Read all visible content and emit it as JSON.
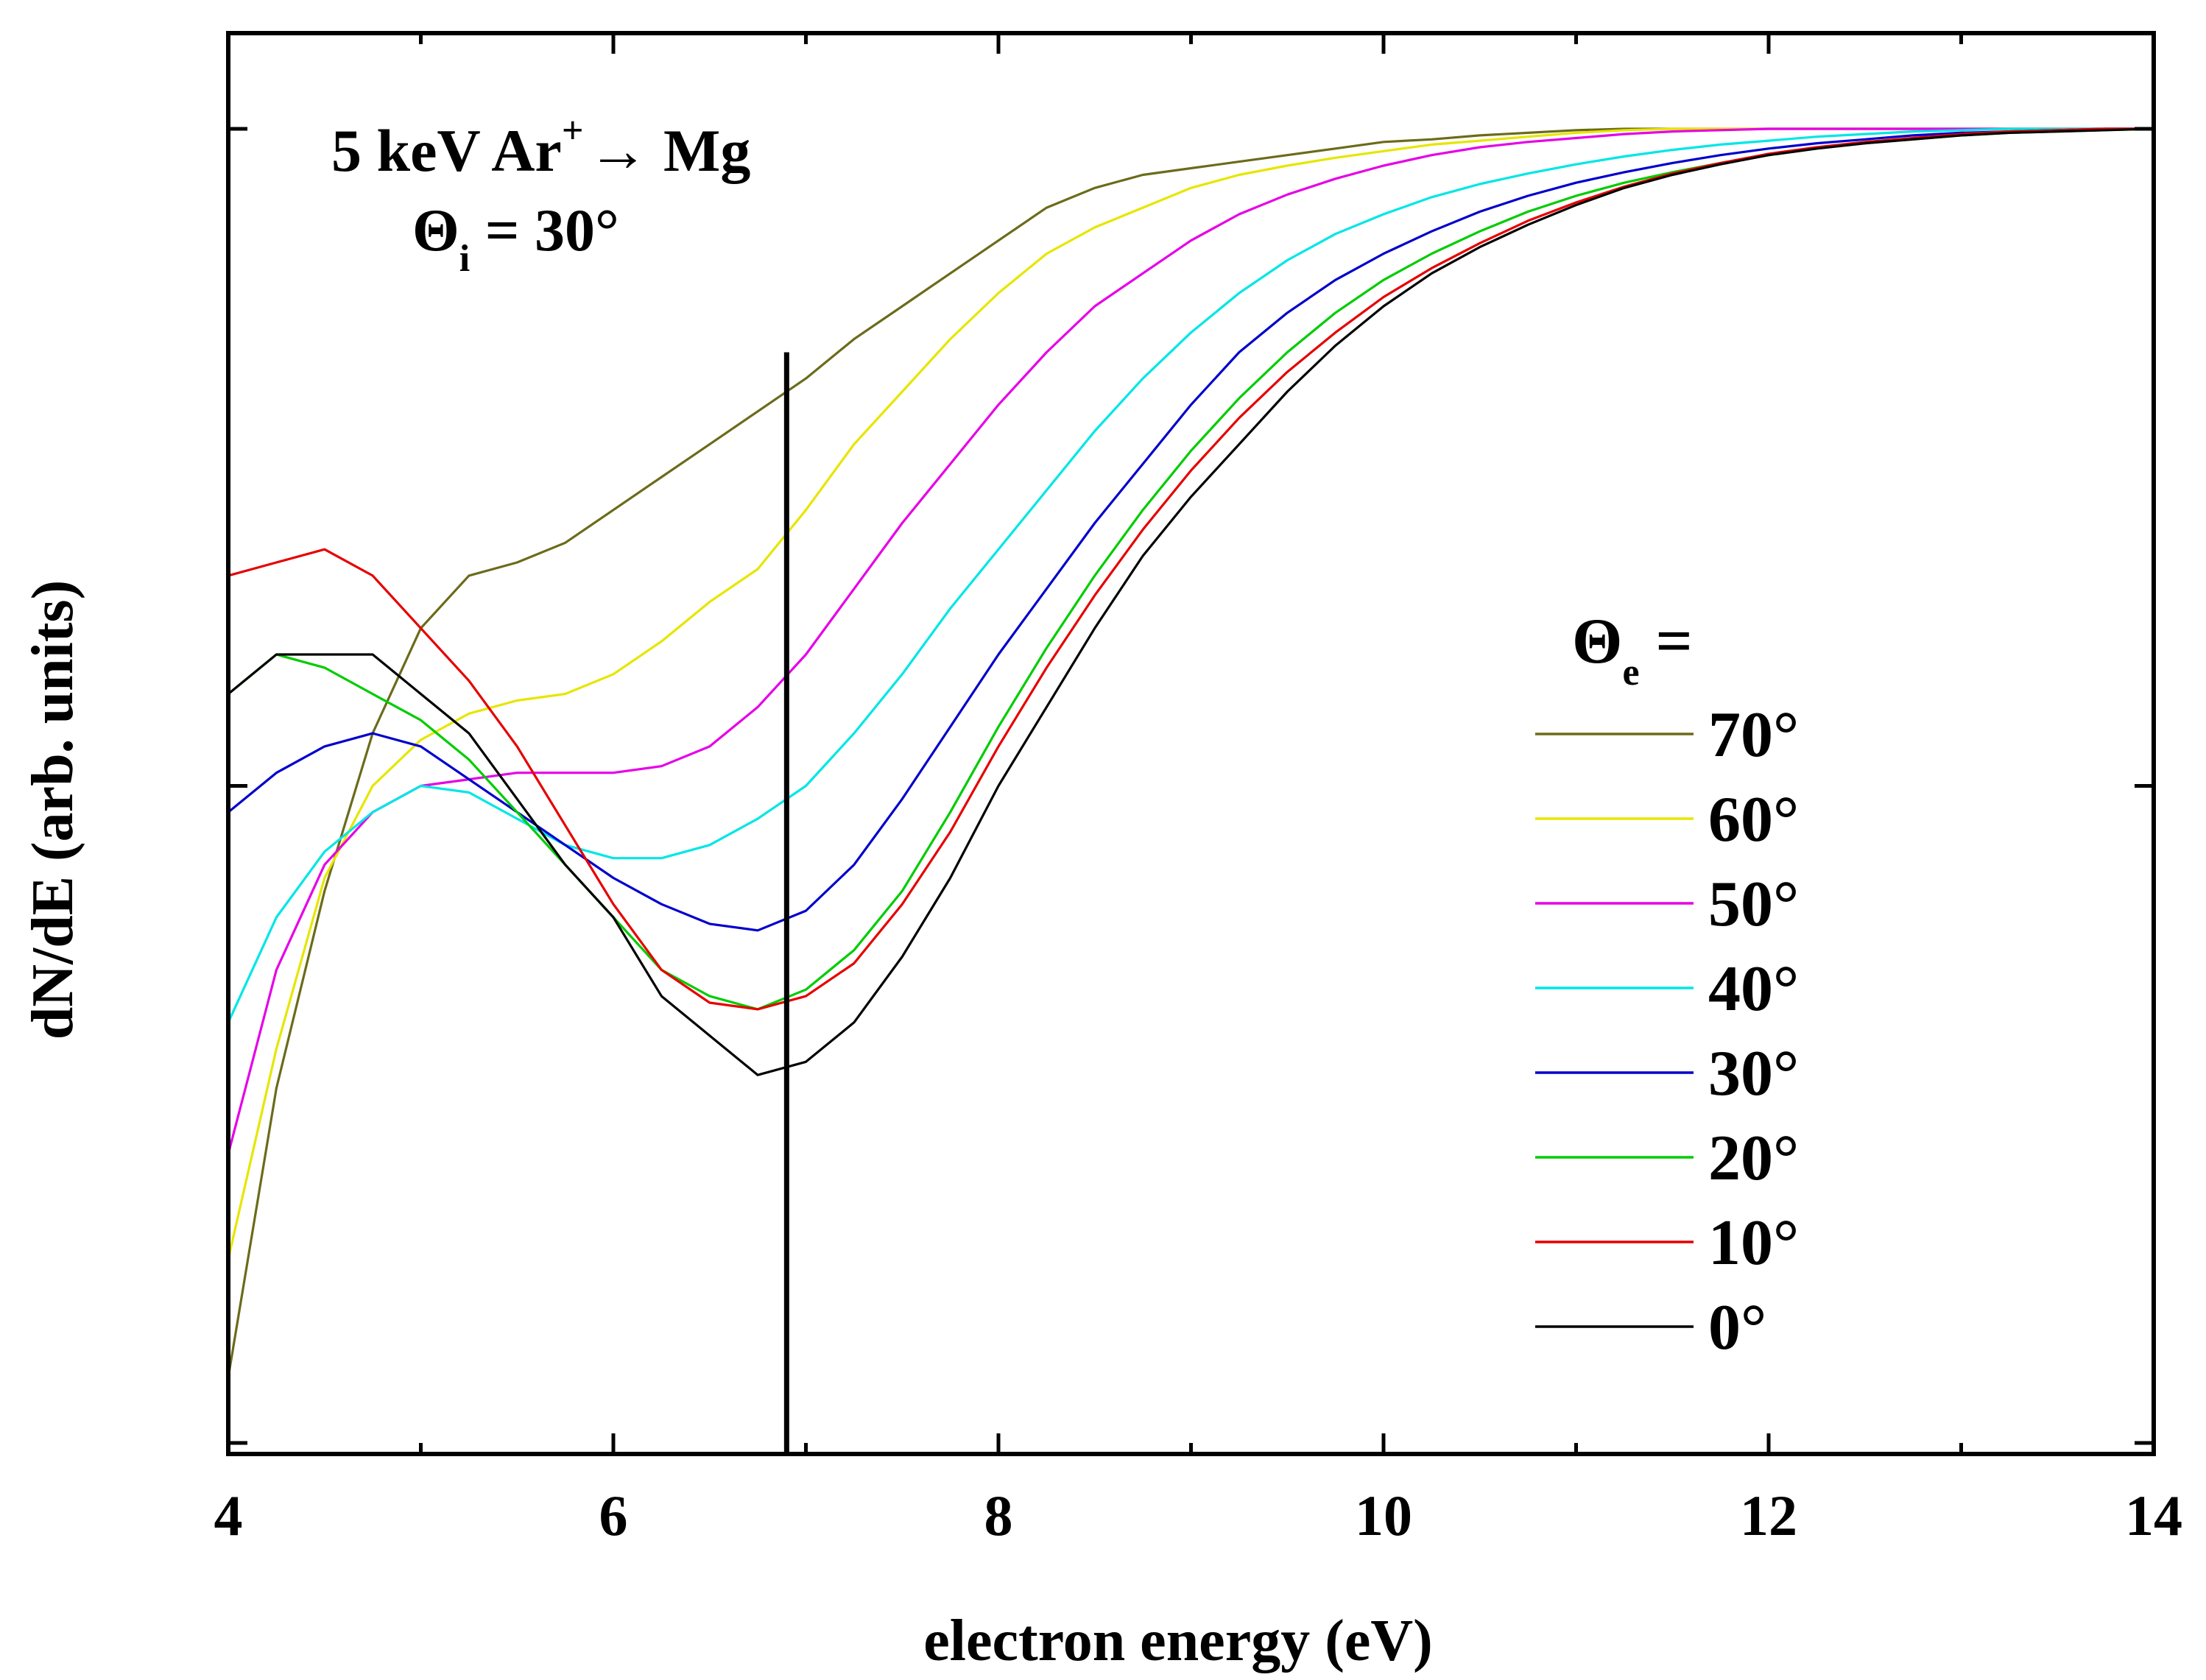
{
  "chart_data": {
    "type": "line",
    "xlabel": "electron energy (eV)",
    "ylabel": "dN/dE (arb. units)",
    "xlim": [
      4,
      14
    ],
    "ylim": [
      0,
      1
    ],
    "x_ticks": [
      "4",
      "6",
      "8",
      "10",
      "12",
      "14"
    ],
    "x_minor_ticks": [
      5,
      7,
      9,
      11,
      13
    ],
    "y_tick_values": [
      0,
      0.5,
      1
    ],
    "grid": false,
    "legend_position": "right",
    "legend_title": "Θe =",
    "legend_title_main": "Θ",
    "legend_title_sub": "e",
    "legend_title_rest": " =",
    "annotation": {
      "line1_pre": "5 keV Ar",
      "line1_sup": "+",
      "line1_post": "→ Mg",
      "line2_main": "Θ",
      "line2_sub": "i",
      "line2_rest": " = 30°"
    },
    "vertical_marker_x": 6.9,
    "vertical_marker_top": 0.83,
    "x": [
      4.0,
      4.25,
      4.5,
      4.75,
      5.0,
      5.25,
      5.5,
      5.75,
      6.0,
      6.25,
      6.5,
      6.75,
      7.0,
      7.25,
      7.5,
      7.75,
      8.0,
      8.25,
      8.5,
      8.75,
      9.0,
      9.25,
      9.5,
      9.75,
      10.0,
      10.25,
      10.5,
      10.75,
      11.0,
      11.25,
      11.5,
      11.75,
      12.0,
      12.25,
      12.5,
      12.75,
      13.0,
      13.25,
      13.5,
      13.75,
      14.0
    ],
    "series": [
      {
        "name": "70°",
        "color": "#6b6b1a",
        "values": [
          0.05,
          0.27,
          0.42,
          0.54,
          0.62,
          0.66,
          0.67,
          0.685,
          0.71,
          0.735,
          0.76,
          0.785,
          0.81,
          0.84,
          0.865,
          0.89,
          0.915,
          0.94,
          0.955,
          0.965,
          0.97,
          0.975,
          0.98,
          0.985,
          0.99,
          0.992,
          0.995,
          0.997,
          0.999,
          1.0,
          1.0,
          1.0,
          1.0,
          1.0,
          1.0,
          1.0,
          1.0,
          1.0,
          1.0,
          1.0,
          1.0
        ]
      },
      {
        "name": "60°",
        "color": "#e6e600",
        "values": [
          0.14,
          0.3,
          0.43,
          0.5,
          0.535,
          0.555,
          0.565,
          0.57,
          0.585,
          0.61,
          0.64,
          0.665,
          0.71,
          0.76,
          0.8,
          0.84,
          0.875,
          0.905,
          0.925,
          0.94,
          0.955,
          0.965,
          0.972,
          0.978,
          0.983,
          0.988,
          0.991,
          0.994,
          0.997,
          0.999,
          1.0,
          1.0,
          1.0,
          1.0,
          1.0,
          1.0,
          1.0,
          1.0,
          1.0,
          1.0,
          1.0
        ]
      },
      {
        "name": "50°",
        "color": "#e600e6",
        "values": [
          0.22,
          0.36,
          0.44,
          0.48,
          0.5,
          0.505,
          0.51,
          0.51,
          0.51,
          0.515,
          0.53,
          0.56,
          0.6,
          0.65,
          0.7,
          0.745,
          0.79,
          0.83,
          0.865,
          0.89,
          0.915,
          0.935,
          0.95,
          0.962,
          0.972,
          0.98,
          0.986,
          0.99,
          0.993,
          0.996,
          0.998,
          0.999,
          1.0,
          1.0,
          1.0,
          1.0,
          1.0,
          1.0,
          1.0,
          1.0,
          1.0
        ]
      },
      {
        "name": "40°",
        "color": "#00e6e6",
        "values": [
          0.32,
          0.4,
          0.45,
          0.48,
          0.5,
          0.495,
          0.475,
          0.455,
          0.445,
          0.445,
          0.455,
          0.475,
          0.5,
          0.54,
          0.585,
          0.635,
          0.68,
          0.725,
          0.77,
          0.81,
          0.845,
          0.875,
          0.9,
          0.92,
          0.935,
          0.948,
          0.958,
          0.966,
          0.973,
          0.979,
          0.984,
          0.988,
          0.991,
          0.994,
          0.996,
          0.998,
          0.999,
          1.0,
          1.0,
          1.0,
          1.0
        ]
      },
      {
        "name": "30°",
        "color": "#0000cc",
        "values": [
          0.48,
          0.51,
          0.53,
          0.54,
          0.53,
          0.505,
          0.48,
          0.455,
          0.43,
          0.41,
          0.395,
          0.39,
          0.405,
          0.44,
          0.49,
          0.545,
          0.6,
          0.65,
          0.7,
          0.745,
          0.79,
          0.83,
          0.86,
          0.885,
          0.905,
          0.922,
          0.937,
          0.949,
          0.959,
          0.967,
          0.974,
          0.98,
          0.985,
          0.989,
          0.992,
          0.995,
          0.997,
          0.998,
          0.999,
          1.0,
          1.0
        ]
      },
      {
        "name": "20°",
        "color": "#00cc00",
        "values": [
          0.57,
          0.6,
          0.59,
          0.57,
          0.55,
          0.52,
          0.48,
          0.44,
          0.4,
          0.36,
          0.34,
          0.33,
          0.345,
          0.375,
          0.42,
          0.48,
          0.545,
          0.605,
          0.66,
          0.71,
          0.755,
          0.795,
          0.83,
          0.86,
          0.885,
          0.905,
          0.922,
          0.937,
          0.949,
          0.959,
          0.967,
          0.974,
          0.98,
          0.985,
          0.989,
          0.992,
          0.995,
          0.997,
          0.998,
          0.999,
          1.0
        ]
      },
      {
        "name": "10°",
        "color": "#e60000",
        "values": [
          0.66,
          0.67,
          0.68,
          0.66,
          0.62,
          0.58,
          0.53,
          0.47,
          0.41,
          0.36,
          0.335,
          0.33,
          0.34,
          0.365,
          0.41,
          0.465,
          0.53,
          0.59,
          0.645,
          0.695,
          0.74,
          0.78,
          0.815,
          0.845,
          0.872,
          0.894,
          0.913,
          0.93,
          0.944,
          0.956,
          0.966,
          0.974,
          0.981,
          0.986,
          0.99,
          0.993,
          0.996,
          0.998,
          0.999,
          1.0,
          1.0
        ]
      },
      {
        "name": "0°",
        "color": "#000000",
        "values": [
          0.57,
          0.6,
          0.6,
          0.6,
          0.57,
          0.54,
          0.49,
          0.44,
          0.4,
          0.34,
          0.31,
          0.28,
          0.29,
          0.32,
          0.37,
          0.43,
          0.5,
          0.56,
          0.62,
          0.675,
          0.72,
          0.76,
          0.8,
          0.835,
          0.865,
          0.89,
          0.91,
          0.927,
          0.942,
          0.955,
          0.965,
          0.973,
          0.98,
          0.985,
          0.989,
          0.992,
          0.995,
          0.997,
          0.998,
          0.999,
          1.0
        ]
      }
    ]
  }
}
